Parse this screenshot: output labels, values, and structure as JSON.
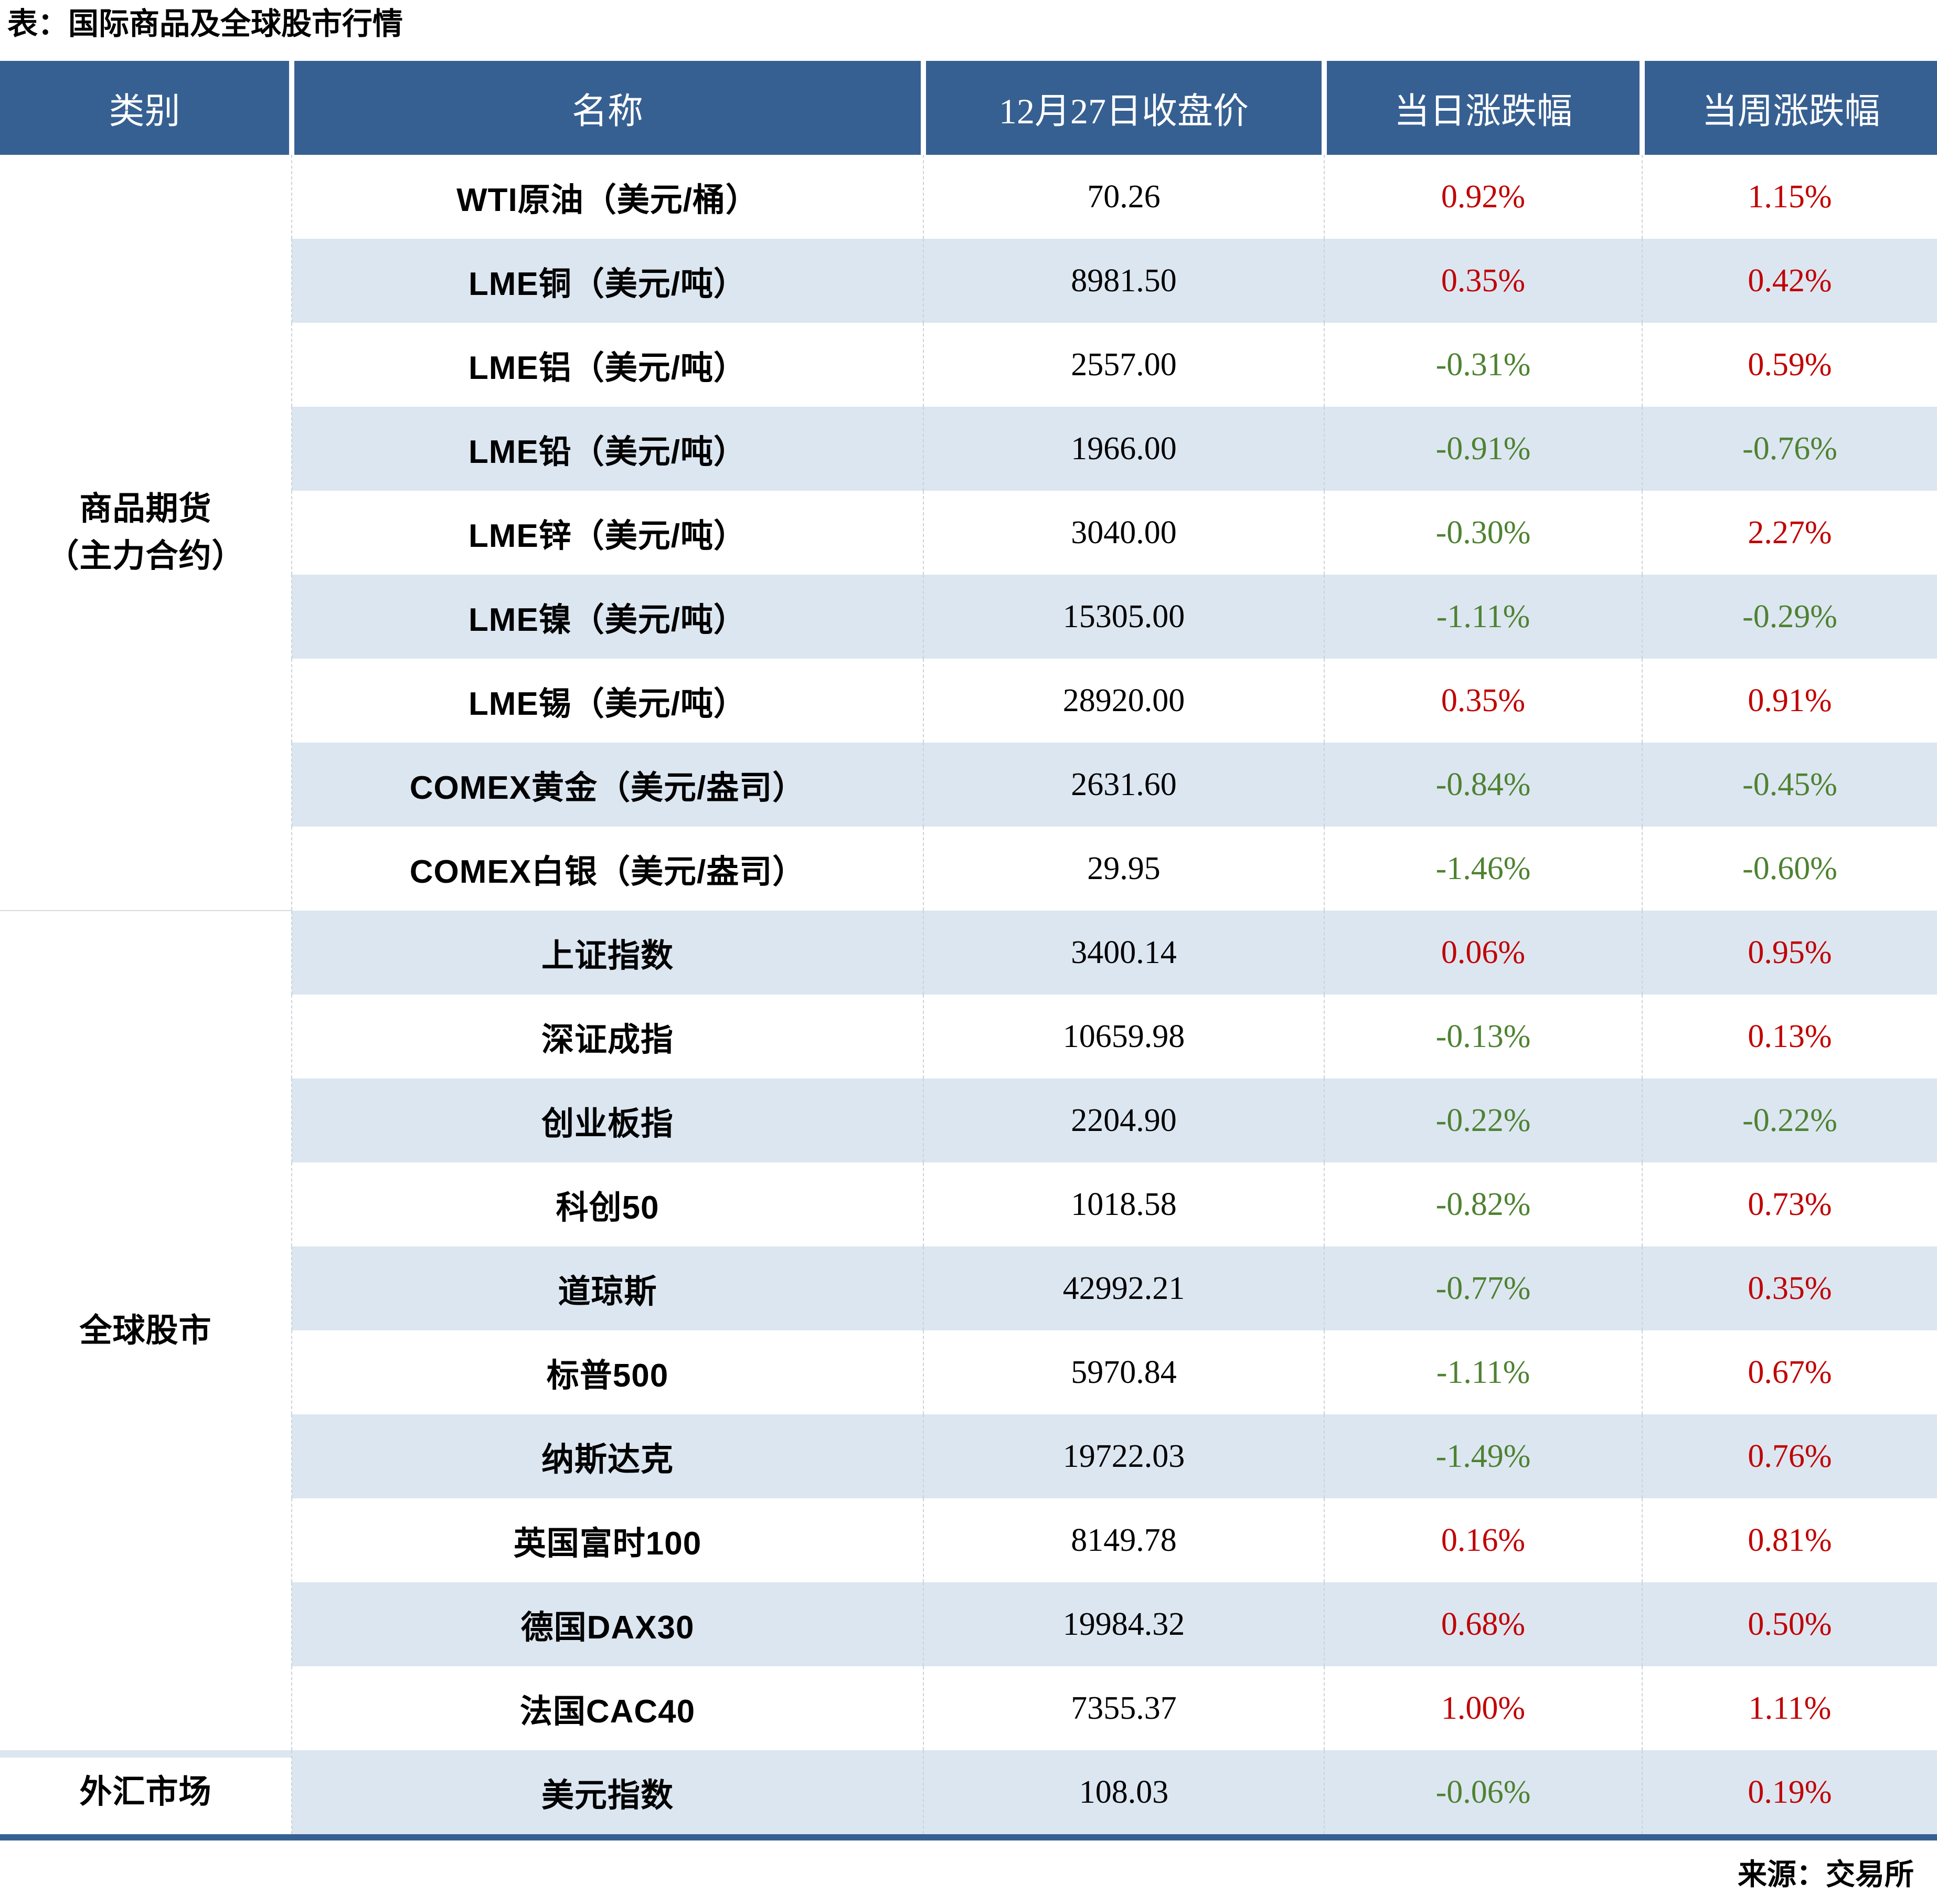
{
  "chart_data": {
    "type": "table",
    "title": "表：国际商品及全球股市行情",
    "source": "来源：交易所",
    "columns": [
      "类别",
      "名称",
      "12月27日收盘价",
      "当日涨跌幅",
      "当周涨跌幅"
    ],
    "sections": [
      {
        "category_lines": [
          "商品期货",
          "（主力合约）"
        ],
        "rows": [
          {
            "name": "WTI原油（美元/桶）",
            "close": "70.26",
            "day": "0.92%",
            "week": "1.15%"
          },
          {
            "name": "LME铜（美元/吨）",
            "close": "8981.50",
            "day": "0.35%",
            "week": "0.42%"
          },
          {
            "name": "LME铝（美元/吨）",
            "close": "2557.00",
            "day": "-0.31%",
            "week": "0.59%"
          },
          {
            "name": "LME铅（美元/吨）",
            "close": "1966.00",
            "day": "-0.91%",
            "week": "-0.76%"
          },
          {
            "name": "LME锌（美元/吨）",
            "close": "3040.00",
            "day": "-0.30%",
            "week": "2.27%"
          },
          {
            "name": "LME镍（美元/吨）",
            "close": "15305.00",
            "day": "-1.11%",
            "week": "-0.29%"
          },
          {
            "name": "LME锡（美元/吨）",
            "close": "28920.00",
            "day": "0.35%",
            "week": "0.91%"
          },
          {
            "name": "COMEX黄金（美元/盎司）",
            "close": "2631.60",
            "day": "-0.84%",
            "week": "-0.45%"
          },
          {
            "name": "COMEX白银（美元/盎司）",
            "close": "29.95",
            "day": "-1.46%",
            "week": "-0.60%"
          }
        ]
      },
      {
        "category_lines": [
          "全球股市"
        ],
        "rows": [
          {
            "name": "上证指数",
            "close": "3400.14",
            "day": "0.06%",
            "week": "0.95%"
          },
          {
            "name": "深证成指",
            "close": "10659.98",
            "day": "-0.13%",
            "week": "0.13%"
          },
          {
            "name": "创业板指",
            "close": "2204.90",
            "day": "-0.22%",
            "week": "-0.22%"
          },
          {
            "name": "科创50",
            "close": "1018.58",
            "day": "-0.82%",
            "week": "0.73%"
          },
          {
            "name": "道琼斯",
            "close": "42992.21",
            "day": "-0.77%",
            "week": "0.35%"
          },
          {
            "name": "标普500",
            "close": "5970.84",
            "day": "-1.11%",
            "week": "0.67%"
          },
          {
            "name": "纳斯达克",
            "close": "19722.03",
            "day": "-1.49%",
            "week": "0.76%"
          },
          {
            "name": "英国富时100",
            "close": "8149.78",
            "day": "0.16%",
            "week": "0.81%"
          },
          {
            "name": "德国DAX30",
            "close": "19984.32",
            "day": "0.68%",
            "week": "0.50%"
          },
          {
            "name": "法国CAC40",
            "close": "7355.37",
            "day": "1.00%",
            "week": "1.11%"
          }
        ]
      },
      {
        "category_lines": [
          "外汇市场"
        ],
        "rows": [
          {
            "name": "美元指数",
            "close": "108.03",
            "day": "-0.06%",
            "week": "0.19%"
          }
        ]
      }
    ]
  },
  "colors": {
    "header_bg": "#376092",
    "row_alt_bg": "#DCE6F1",
    "up_red": "#C00000",
    "down_green": "#4E8231",
    "bottom_bar": "#376092"
  }
}
